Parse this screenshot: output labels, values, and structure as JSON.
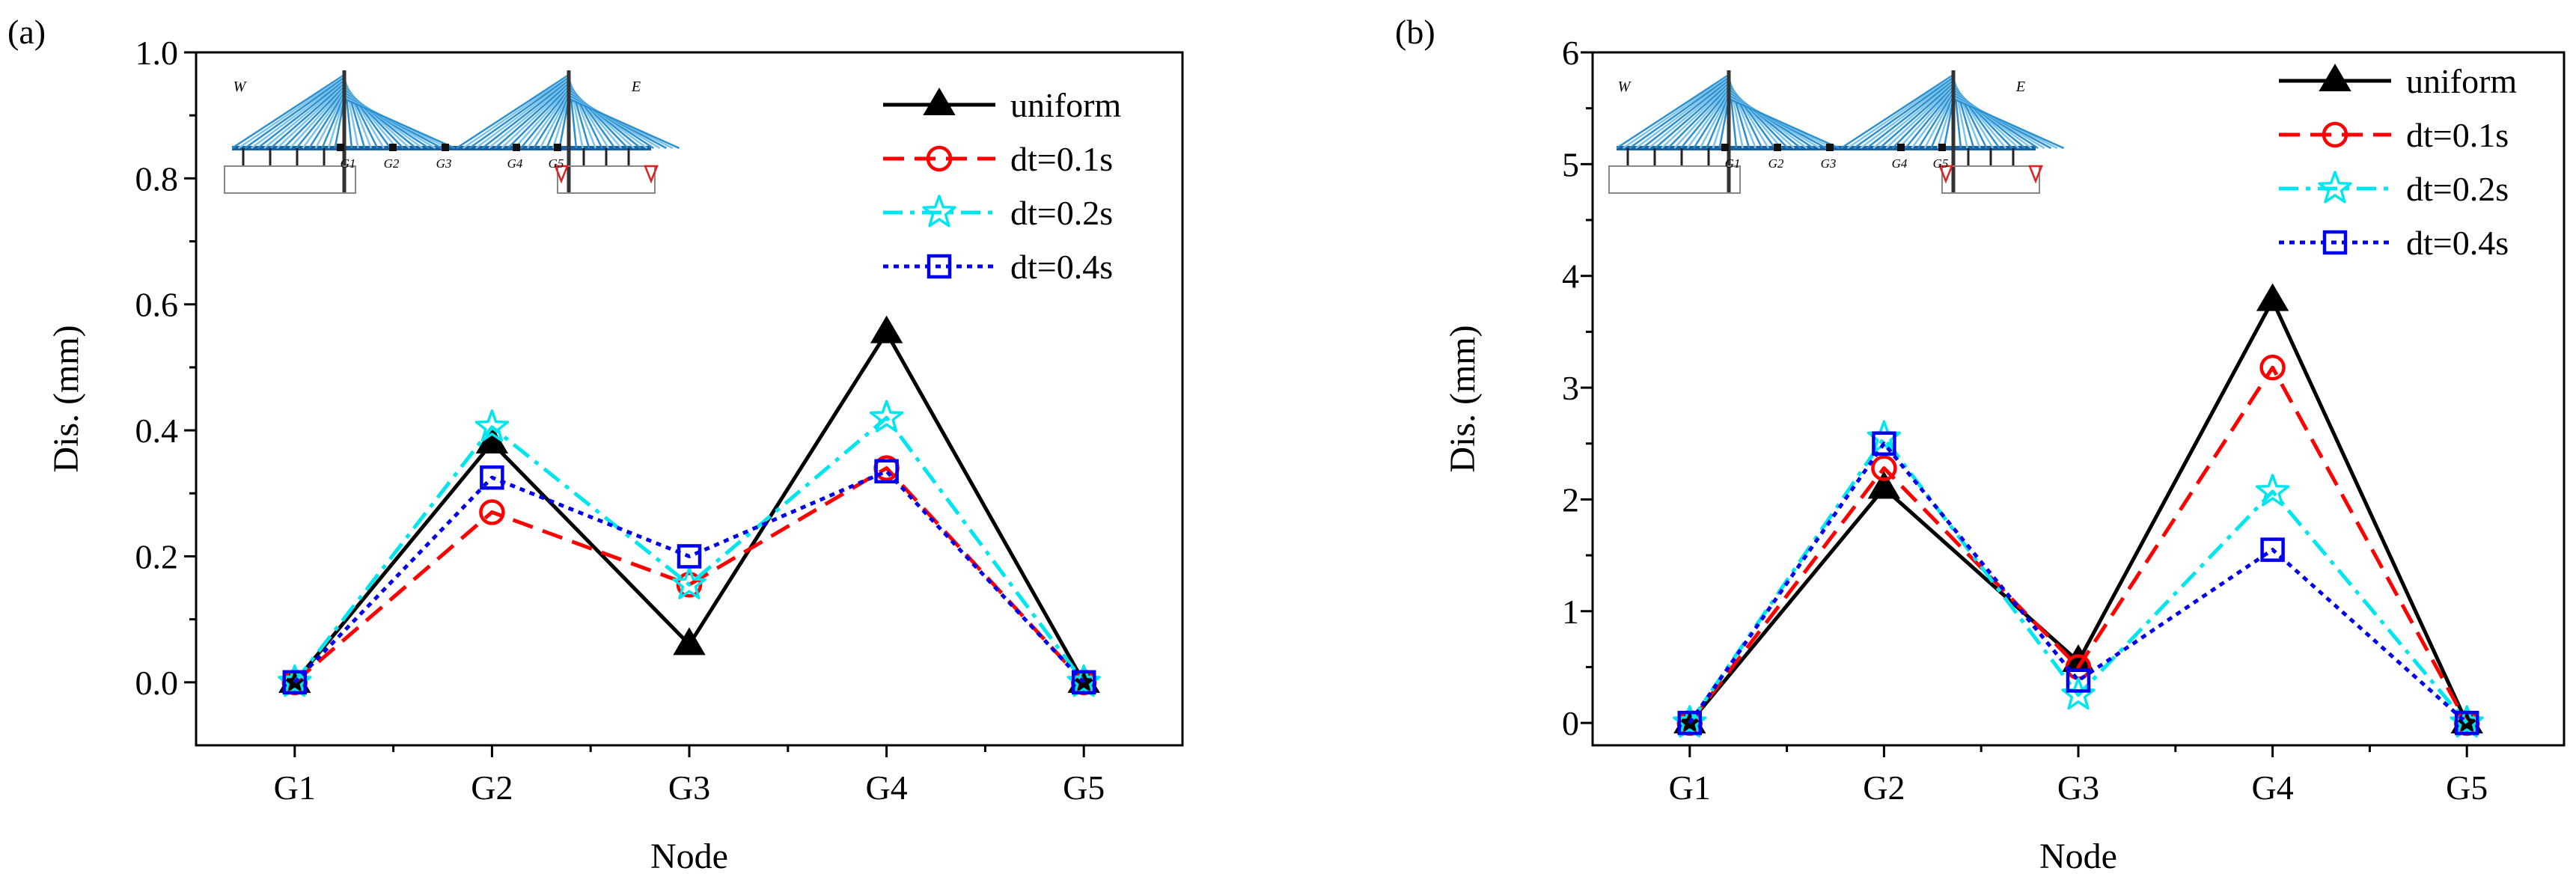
{
  "chart_data": [
    {
      "panel_label": "(a)",
      "type": "line",
      "categories": [
        "G1",
        "G2",
        "G3",
        "G4",
        "G5"
      ],
      "xlabel": "Node",
      "ylabel": "Dis. (mm)",
      "ylim": [
        -0.1,
        1.0
      ],
      "yticks": [
        "0.0",
        "0.2",
        "0.4",
        "0.6",
        "0.8",
        "1.0"
      ],
      "ytick_values": [
        0.0,
        0.2,
        0.4,
        0.6,
        0.8,
        1.0
      ],
      "grid": false,
      "legend_position": "top-right",
      "series": [
        {
          "name": "uniform",
          "values": [
            0.0,
            0.38,
            0.06,
            0.555,
            0.0
          ],
          "color": "#000000",
          "marker": "filled-triangle",
          "dash": "solid"
        },
        {
          "name": "dt=0.1s",
          "values": [
            0.0,
            0.27,
            0.155,
            0.34,
            0.0
          ],
          "color": "#ff0000",
          "marker": "open-circle",
          "dash": "dash"
        },
        {
          "name": "dt=0.2s",
          "values": [
            0.0,
            0.405,
            0.155,
            0.42,
            0.0
          ],
          "color": "#00e5ee",
          "marker": "open-star",
          "dash": "dashdot"
        },
        {
          "name": "dt=0.4s",
          "values": [
            0.0,
            0.325,
            0.2,
            0.335,
            0.0
          ],
          "color": "#0000ee",
          "marker": "open-square",
          "dash": "dot"
        }
      ],
      "inset": {
        "west_label": "W",
        "east_label": "E",
        "node_labels": [
          "G1",
          "G2",
          "G3",
          "G4",
          "G5"
        ]
      }
    },
    {
      "panel_label": "(b)",
      "type": "line",
      "categories": [
        "G1",
        "G2",
        "G3",
        "G4",
        "G5"
      ],
      "xlabel": "Node",
      "ylabel": "Dis. (mm)",
      "ylim": [
        -0.2,
        6
      ],
      "yticks": [
        "0",
        "1",
        "2",
        "3",
        "4",
        "5",
        "6"
      ],
      "ytick_values": [
        0,
        1,
        2,
        3,
        4,
        5,
        6
      ],
      "grid": false,
      "legend_position": "top-right",
      "series": [
        {
          "name": "uniform",
          "values": [
            0.0,
            2.1,
            0.55,
            3.78,
            0.0
          ],
          "color": "#000000",
          "marker": "filled-triangle",
          "dash": "solid"
        },
        {
          "name": "dt=0.1s",
          "values": [
            0.0,
            2.28,
            0.5,
            3.18,
            0.0
          ],
          "color": "#ff0000",
          "marker": "open-circle",
          "dash": "dash"
        },
        {
          "name": "dt=0.2s",
          "values": [
            0.0,
            2.55,
            0.25,
            2.07,
            0.0
          ],
          "color": "#00e5ee",
          "marker": "open-star",
          "dash": "dashdot"
        },
        {
          "name": "dt=0.4s",
          "values": [
            0.0,
            2.5,
            0.38,
            1.55,
            0.0
          ],
          "color": "#0000ee",
          "marker": "open-square",
          "dash": "dot"
        }
      ],
      "inset": {
        "west_label": "W",
        "east_label": "E",
        "node_labels": [
          "G1",
          "G2",
          "G3",
          "G4",
          "G5"
        ]
      }
    }
  ]
}
